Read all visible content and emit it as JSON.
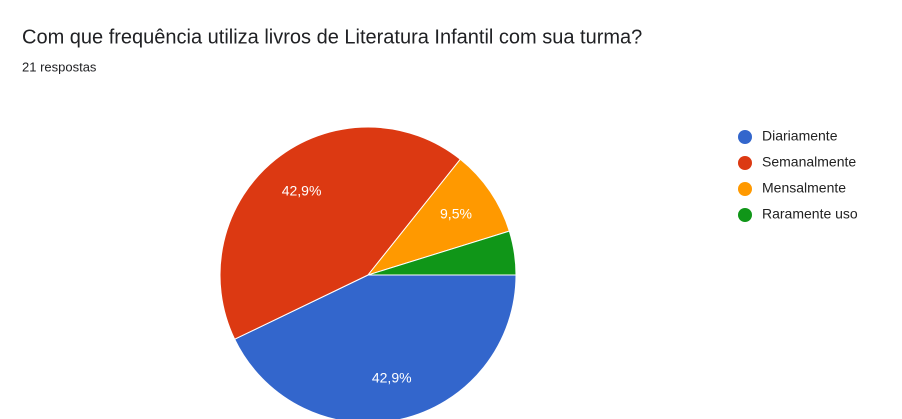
{
  "chart_data": {
    "type": "pie",
    "title": "Com que frequência utiliza livros de Literatura Infantil com sua turma?",
    "subtitle": "21 respostas",
    "categories": [
      "Diariamente",
      "Semanalmente",
      "Mensalmente",
      "Raramente uso"
    ],
    "values": [
      42.9,
      42.9,
      9.5,
      4.8
    ],
    "value_labels": [
      "42,9%",
      "42,9%",
      "9,5%",
      null
    ],
    "colors": [
      "#3366cc",
      "#dc3912",
      "#ff9900",
      "#109618"
    ],
    "legend": "right"
  }
}
